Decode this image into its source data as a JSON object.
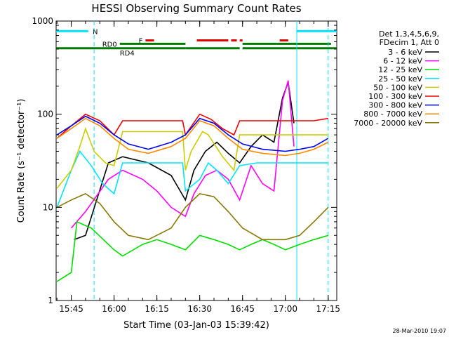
{
  "chart_data": {
    "type": "line",
    "title": "HESSI Observing Summary Count Rates",
    "xlabel": "Start Time (03-Jan-03 15:39:42)",
    "ylabel": "Count Rate (s⁻¹ detector⁻¹)",
    "xlim": [
      "15:39:42",
      "17:18:00"
    ],
    "ylim": [
      1,
      1000
    ],
    "y_scale": "log",
    "grid": false,
    "legend_position": "right",
    "x_ticks": [
      "15:45",
      "16:00",
      "16:15",
      "16:30",
      "16:45",
      "17:00",
      "17:15"
    ],
    "y_ticks": [
      "1",
      "10",
      "100",
      "1000"
    ],
    "legend_header": [
      "Det 1,3,4,5,6,9,",
      "FDecim 1, Att 0"
    ],
    "timestamp": "28-Mar-2010 19:07",
    "colors": {
      "axes": "#000000",
      "night": "#00e5ff",
      "flare": "#e00000",
      "rd0": "#007a00",
      "rd4": "#007a00"
    },
    "series": [
      {
        "name": "3 - 6 keV",
        "color": "#000000",
        "x": [
          "15:46",
          "15:50",
          "15:58",
          "16:03",
          "16:12",
          "16:20",
          "16:25",
          "16:28",
          "16:32",
          "16:36",
          "16:40",
          "16:44",
          "16:48",
          "16:52",
          "16:56",
          "16:59",
          "17:01",
          "17:03"
        ],
        "y": [
          4.5,
          5.0,
          30,
          35,
          30,
          22,
          12,
          25,
          40,
          50,
          38,
          30,
          45,
          60,
          50,
          150,
          220,
          80
        ]
      },
      {
        "name": "6 - 12 keV",
        "color": "#ff00ff",
        "x": [
          "15:45",
          "15:50",
          "15:58",
          "16:03",
          "16:10",
          "16:15",
          "16:20",
          "16:25",
          "16:28",
          "16:32",
          "16:36",
          "16:40",
          "16:44",
          "16:48",
          "16:52",
          "16:56",
          "16:59",
          "17:01",
          "17:03"
        ],
        "y": [
          6,
          9,
          20,
          25,
          20,
          15,
          10,
          8,
          14,
          22,
          25,
          20,
          12,
          28,
          18,
          15,
          140,
          230,
          45
        ]
      },
      {
        "name": "12 - 25 keV",
        "color": "#00dd00",
        "x": [
          "15:40",
          "15:45",
          "15:47",
          "15:52",
          "16:00",
          "16:03",
          "16:10",
          "16:15",
          "16:20",
          "16:25",
          "16:30",
          "16:35",
          "16:40",
          "16:44",
          "16:48",
          "16:52",
          "16:56",
          "17:00",
          "17:05",
          "17:10",
          "17:15"
        ],
        "y": [
          1.6,
          2.0,
          7.0,
          6.0,
          3.5,
          3.0,
          4.0,
          4.5,
          4.0,
          3.5,
          5.0,
          4.5,
          4.0,
          3.5,
          4.0,
          4.5,
          4.0,
          3.5,
          4.0,
          4.5,
          5.0
        ]
      },
      {
        "name": "25 - 50 keV",
        "color": "#00e5ff",
        "x": [
          "15:40",
          "15:45",
          "15:48",
          "15:52",
          "15:56",
          "16:00",
          "16:03",
          "16:10",
          "16:20",
          "16:24",
          "16:25",
          "16:30",
          "16:33",
          "16:36",
          "16:40",
          "16:44",
          "16:50",
          "17:00",
          "17:05",
          "17:10",
          "17:15"
        ],
        "y": [
          10,
          25,
          40,
          28,
          18,
          14,
          30,
          30,
          30,
          30,
          15,
          20,
          30,
          25,
          18,
          28,
          30,
          30,
          30,
          30,
          30
        ]
      },
      {
        "name": "50 - 100 keV",
        "color": "#cccc00",
        "x": [
          "15:40",
          "15:45",
          "15:48",
          "15:50",
          "15:53",
          "15:57",
          "16:00",
          "16:03",
          "16:10",
          "16:20",
          "16:24",
          "16:25",
          "16:27",
          "16:31",
          "16:33",
          "16:38",
          "16:42",
          "16:44",
          "16:50",
          "17:00",
          "17:05",
          "17:10",
          "17:15"
        ],
        "y": [
          16,
          25,
          45,
          70,
          40,
          30,
          28,
          65,
          65,
          65,
          65,
          25,
          40,
          65,
          60,
          35,
          25,
          60,
          60,
          60,
          60,
          60,
          60
        ]
      },
      {
        "name": "100 - 300 keV",
        "color": "#ee0000",
        "x": [
          "15:40",
          "15:45",
          "15:50",
          "15:55",
          "16:00",
          "16:03",
          "16:10",
          "16:20",
          "16:24",
          "16:25",
          "16:30",
          "16:34",
          "16:38",
          "16:42",
          "16:44",
          "16:50",
          "17:00",
          "17:05",
          "17:10",
          "17:15"
        ],
        "y": [
          55,
          75,
          100,
          85,
          60,
          85,
          85,
          85,
          85,
          60,
          100,
          88,
          70,
          60,
          85,
          85,
          85,
          85,
          85,
          90
        ]
      },
      {
        "name": "300 - 800 keV",
        "color": "#0000ee",
        "x": [
          "15:40",
          "15:45",
          "15:50",
          "15:55",
          "16:00",
          "16:05",
          "16:12",
          "16:20",
          "16:25",
          "16:30",
          "16:35",
          "16:40",
          "16:45",
          "16:52",
          "17:00",
          "17:05",
          "17:10",
          "17:15"
        ],
        "y": [
          60,
          75,
          95,
          80,
          60,
          48,
          42,
          50,
          60,
          90,
          80,
          60,
          48,
          42,
          40,
          42,
          45,
          55
        ]
      },
      {
        "name": "800 - 7000 keV",
        "color": "#ff8800",
        "x": [
          "15:40",
          "15:45",
          "15:50",
          "15:55",
          "16:00",
          "16:05",
          "16:12",
          "16:20",
          "16:25",
          "16:30",
          "16:35",
          "16:40",
          "16:45",
          "16:52",
          "17:00",
          "17:05",
          "17:10",
          "17:15"
        ],
        "y": [
          55,
          70,
          90,
          75,
          55,
          42,
          38,
          45,
          55,
          85,
          75,
          55,
          42,
          38,
          36,
          38,
          42,
          50
        ]
      },
      {
        "name": "7000 - 20000 keV",
        "color": "#887700",
        "x": [
          "15:40",
          "15:45",
          "15:50",
          "15:55",
          "16:00",
          "16:05",
          "16:12",
          "16:20",
          "16:25",
          "16:30",
          "16:35",
          "16:40",
          "16:45",
          "16:52",
          "17:00",
          "17:05",
          "17:10",
          "17:15"
        ],
        "y": [
          10,
          12,
          14,
          11,
          7,
          5.0,
          4.5,
          6,
          10,
          14,
          13,
          9,
          6,
          4.5,
          4.5,
          5,
          7,
          10
        ]
      }
    ],
    "bars": [
      {
        "label": "N",
        "color": "#00e5ff",
        "y": 780,
        "segments": [
          [
            "15:39:42",
            "15:51"
          ],
          [
            "17:04",
            "17:18"
          ]
        ]
      },
      {
        "label": "F",
        "color": "#e00000",
        "y": 620,
        "segments": [
          [
            "16:11",
            "16:14"
          ],
          [
            "16:29",
            "16:40"
          ],
          [
            "16:41",
            "16:43"
          ],
          [
            "16:44",
            "16:45"
          ],
          [
            "16:58",
            "17:01"
          ]
        ]
      },
      {
        "label": "RD0",
        "color": "#007a00",
        "y": 570,
        "segments": [
          [
            "16:02",
            "16:25"
          ],
          [
            "16:45",
            "17:16"
          ]
        ]
      },
      {
        "label": "RD4",
        "color": "#007a00",
        "y": 510,
        "segments": [
          [
            "15:39:42",
            "16:25"
          ],
          [
            "16:25",
            "16:44"
          ],
          [
            "16:45",
            "17:18"
          ]
        ]
      }
    ],
    "vlines": [
      {
        "time": "15:53",
        "color": "#00e5ff",
        "style": "dashed"
      },
      {
        "time": "17:04",
        "color": "#00e5ff",
        "style": "solid"
      },
      {
        "time": "17:15",
        "color": "#00e5ff",
        "style": "dashed"
      }
    ]
  }
}
